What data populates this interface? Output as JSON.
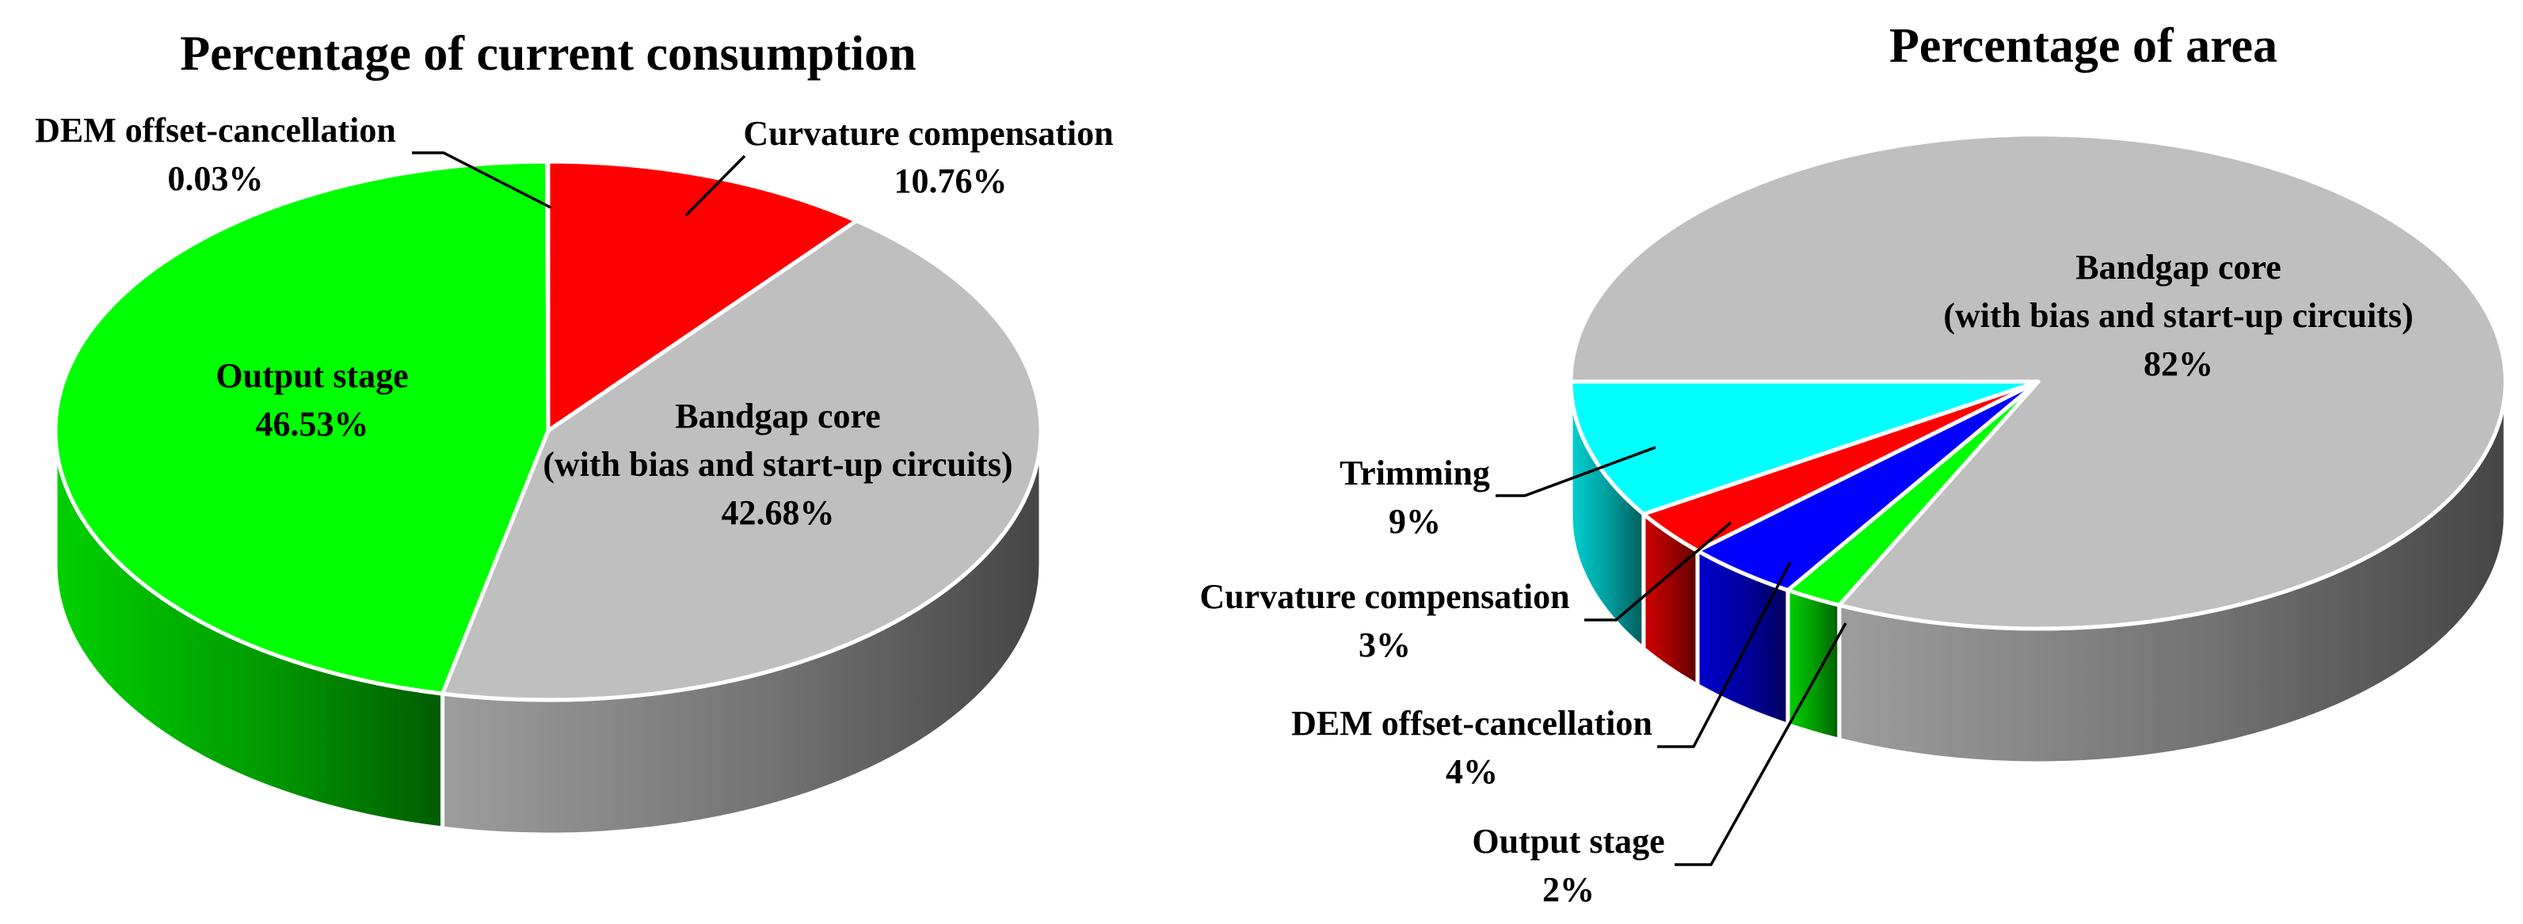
{
  "chart_data": [
    {
      "type": "pie",
      "style": "3d",
      "title": "Percentage of current consumption",
      "unit": "%",
      "slices": [
        {
          "label_lines": [
            "Curvature compensation"
          ],
          "value": 10.76,
          "value_label": "10.76%",
          "color": "#ff0000"
        },
        {
          "label_lines": [
            "Bandgap core",
            "(with bias and start-up circuits)"
          ],
          "value": 42.68,
          "value_label": "42.68%",
          "color": "#bfbfbf"
        },
        {
          "label_lines": [
            "Output stage"
          ],
          "value": 46.53,
          "value_label": "46.53%",
          "color": "#00ff00"
        },
        {
          "label_lines": [
            "DEM offset-cancellation"
          ],
          "value": 0.03,
          "value_label": "0.03%",
          "color": "#ffff00"
        }
      ]
    },
    {
      "type": "pie",
      "style": "3d",
      "title": "Percentage of area",
      "unit": "%",
      "slices": [
        {
          "label_lines": [
            "Bandgap core",
            "(with bias and start-up circuits)"
          ],
          "value": 82,
          "value_label": "82%",
          "color": "#bfbfbf"
        },
        {
          "label_lines": [
            "Output stage"
          ],
          "value": 2,
          "value_label": "2%",
          "color": "#00ff00"
        },
        {
          "label_lines": [
            "DEM offset-cancellation"
          ],
          "value": 4,
          "value_label": "4%",
          "color": "#0000ff"
        },
        {
          "label_lines": [
            "Curvature compensation"
          ],
          "value": 3,
          "value_label": "3%",
          "color": "#ff0000"
        },
        {
          "label_lines": [
            "Trimming"
          ],
          "value": 9,
          "value_label": "9%",
          "color": "#00ffff"
        }
      ]
    }
  ]
}
